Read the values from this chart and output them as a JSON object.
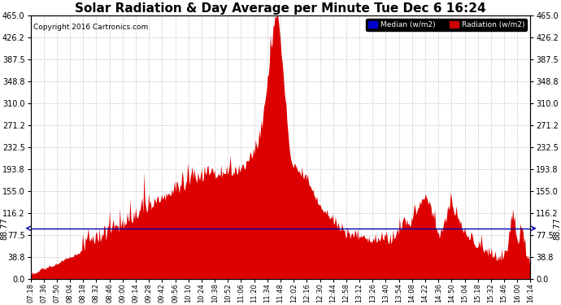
{
  "title": "Solar Radiation & Day Average per Minute Tue Dec 6 16:24",
  "copyright": "Copyright 2016 Cartronics.com",
  "ylim": [
    0,
    465.0
  ],
  "yticks": [
    0.0,
    38.8,
    77.5,
    116.2,
    155.0,
    193.8,
    232.5,
    271.2,
    310.0,
    348.8,
    387.5,
    426.2,
    465.0
  ],
  "median_value": 88.77,
  "area_color": "#dd0000",
  "median_line_color": "#0000aa",
  "background_color": "#ffffff",
  "grid_color": "#bbbbbb",
  "title_fontsize": 11,
  "xtick_labels": [
    "07:18",
    "07:36",
    "07:50",
    "08:04",
    "08:18",
    "08:32",
    "08:46",
    "09:00",
    "09:14",
    "09:28",
    "09:42",
    "09:56",
    "10:10",
    "10:24",
    "10:38",
    "10:52",
    "11:06",
    "11:20",
    "11:34",
    "11:48",
    "12:02",
    "12:16",
    "12:30",
    "12:44",
    "12:58",
    "13:12",
    "13:26",
    "13:40",
    "13:54",
    "14:08",
    "14:22",
    "14:36",
    "14:50",
    "15:04",
    "15:18",
    "15:32",
    "15:46",
    "16:00",
    "16:14"
  ],
  "n_points": 539
}
